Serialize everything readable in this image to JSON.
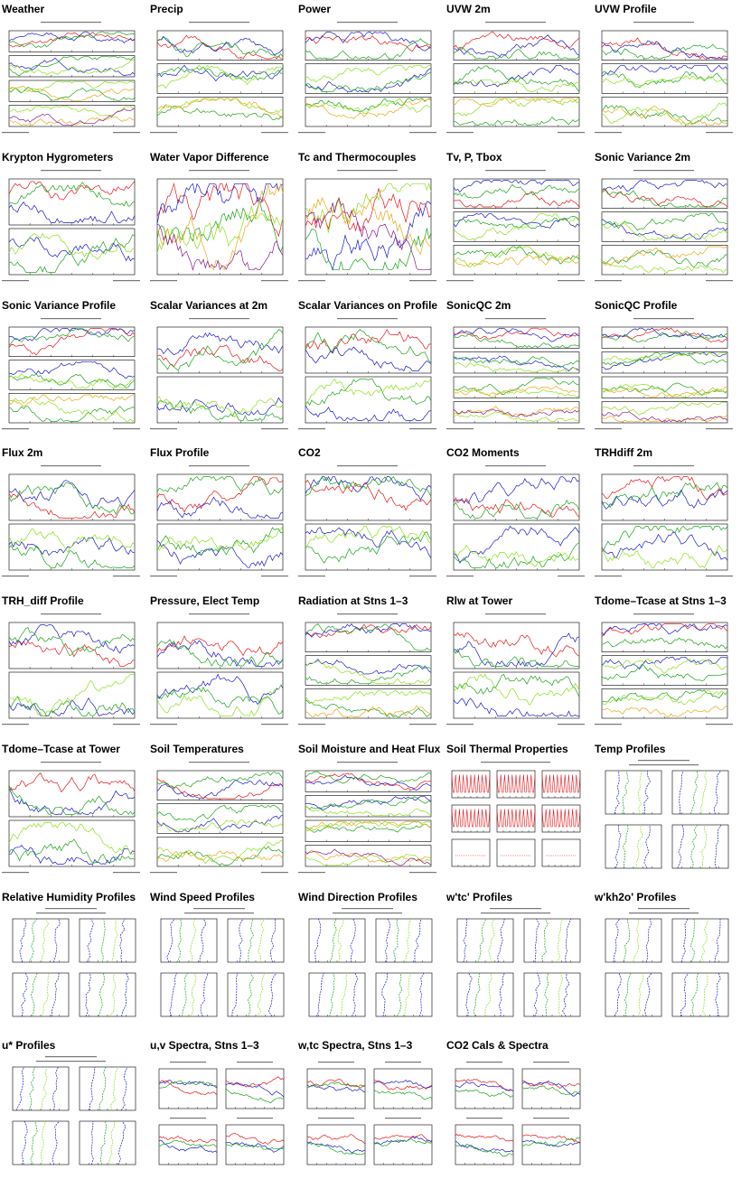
{
  "colors": {
    "red": "#e8161a",
    "blue": "#1a1acc",
    "green": "#19a319",
    "lime": "#8be018",
    "orange": "#e8a816",
    "purple": "#8a1a8a",
    "gray": "#808080",
    "black": "#000000"
  },
  "tiles": [
    {
      "title": "Weather",
      "kind": "ts4"
    },
    {
      "title": "Precip",
      "kind": "ts3"
    },
    {
      "title": "Power",
      "kind": "ts3"
    },
    {
      "title": "UVW 2m",
      "kind": "ts3"
    },
    {
      "title": "UVW Profile",
      "kind": "ts3"
    },
    {
      "title": "Krypton Hygrometers",
      "kind": "ts2"
    },
    {
      "title": "Water Vapor Difference",
      "kind": "ts1"
    },
    {
      "title": "Tc and Thermocouples",
      "kind": "ts1"
    },
    {
      "title": "Tv, P, Tbox",
      "kind": "ts3"
    },
    {
      "title": "Sonic Variance 2m",
      "kind": "ts3"
    },
    {
      "title": "Sonic Variance Profile",
      "kind": "ts3"
    },
    {
      "title": "Scalar Variances at 2m",
      "kind": "ts2"
    },
    {
      "title": "Scalar Variances on Profile",
      "kind": "ts2"
    },
    {
      "title": "SonicQC 2m",
      "kind": "ts4"
    },
    {
      "title": "SonicQC Profile",
      "kind": "ts4"
    },
    {
      "title": "Flux 2m",
      "kind": "ts2"
    },
    {
      "title": "Flux Profile",
      "kind": "ts2"
    },
    {
      "title": "CO2",
      "kind": "ts2"
    },
    {
      "title": "CO2 Moments",
      "kind": "ts2"
    },
    {
      "title": "TRHdiff 2m",
      "kind": "ts2"
    },
    {
      "title": "TRH_diff Profile",
      "kind": "ts2"
    },
    {
      "title": "Pressure, Elect Temp",
      "kind": "ts2"
    },
    {
      "title": "Radiation at Stns 1–3",
      "kind": "ts3"
    },
    {
      "title": "Rlw at Tower",
      "kind": "ts2"
    },
    {
      "title": "Tdome–Tcase at Stns 1–3",
      "kind": "ts3"
    },
    {
      "title": "Tdome–Tcase at Tower",
      "kind": "ts2"
    },
    {
      "title": "Soil Temperatures",
      "kind": "ts3"
    },
    {
      "title": "Soil Moisture and Heat Flux",
      "kind": "ts4"
    },
    {
      "title": "Soil Thermal Properties",
      "kind": "grid6"
    },
    {
      "title": "Temp Profiles",
      "kind": "prof4"
    },
    {
      "title": "Relative Humidity Profiles",
      "kind": "prof4"
    },
    {
      "title": "Wind Speed Profiles",
      "kind": "prof4"
    },
    {
      "title": "Wind Direction Profiles",
      "kind": "prof4"
    },
    {
      "title": "w'tc' Profiles",
      "kind": "prof4"
    },
    {
      "title": "w'kh2o' Profiles",
      "kind": "prof4"
    },
    {
      "title": "u* Profiles",
      "kind": "prof4"
    },
    {
      "title": "u,v Spectra, Stns 1–3",
      "kind": "spec4"
    },
    {
      "title": "w,tc Spectra, Stns 1–3",
      "kind": "spec4"
    },
    {
      "title": "CO2 Cals & Spectra",
      "kind": "spec4"
    }
  ]
}
